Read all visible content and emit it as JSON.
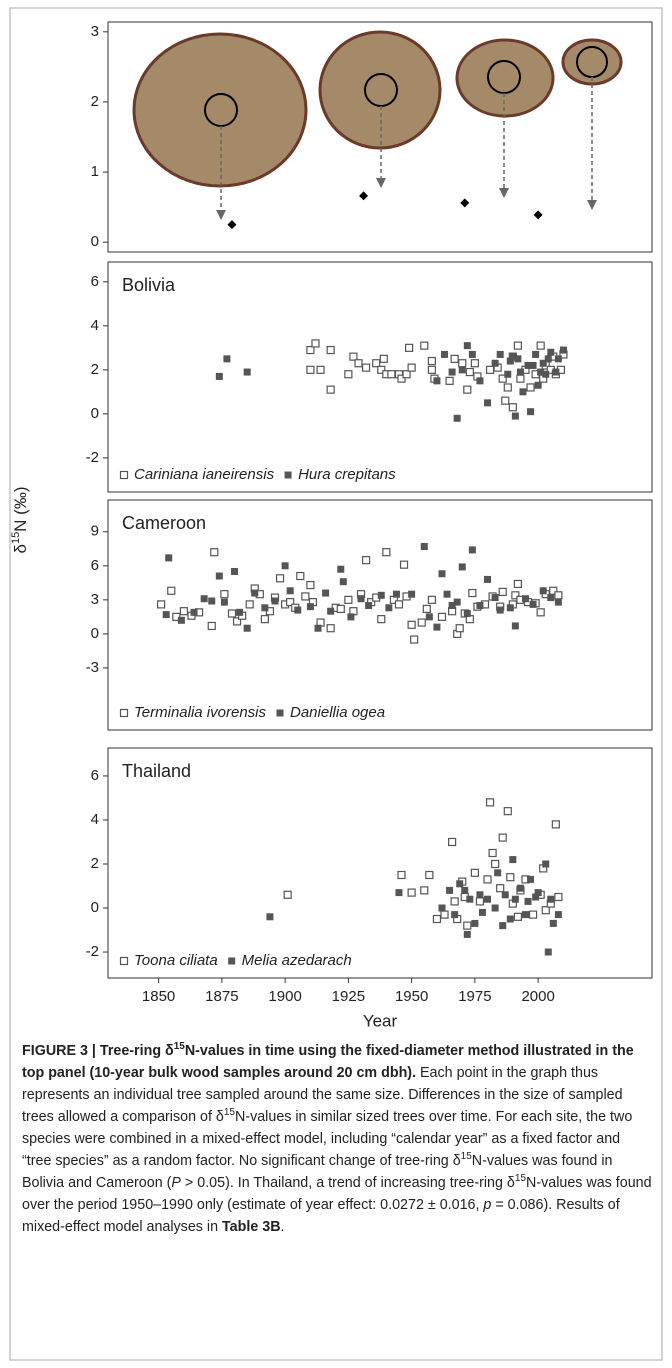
{
  "chart_data": [
    {
      "type": "scatter",
      "marker": "diamond",
      "color": "#000000",
      "x": [
        1879,
        1931,
        1971,
        2000
      ],
      "values": [
        0.25,
        0.66,
        0.56,
        0.39
      ],
      "xlim": [
        1830,
        2045
      ],
      "ylim": [
        -0.14,
        3.14
      ],
      "yticks": [
        0,
        1,
        2,
        3
      ]
    },
    {
      "type": "scatter",
      "title": "Bolivia",
      "xlim": [
        1830,
        2045
      ],
      "ylim": [
        -3.55,
        6.9
      ],
      "yticks": [
        -2,
        0,
        2,
        4,
        6
      ],
      "series": [
        {
          "name": "Cariniana ianeirensis",
          "marker": "open-square",
          "color": "#555555",
          "x": [
            1910,
            1910,
            1912,
            1914,
            1918,
            1918,
            1925,
            1927,
            1929,
            1932,
            1936,
            1938,
            1939,
            1940,
            1942,
            1945,
            1946,
            1948,
            1949,
            1950,
            1955,
            1958,
            1958,
            1959,
            1965,
            1967,
            1970,
            1972,
            1973,
            1975,
            1976,
            1981,
            1984,
            1986,
            1987,
            1988,
            1990,
            1990,
            1992,
            1993,
            1995,
            1997,
            1999,
            2001,
            2002,
            2003,
            2005,
            2006,
            2007,
            2009,
            2010
          ],
          "values": [
            2.0,
            2.9,
            3.2,
            2.0,
            2.9,
            1.1,
            1.8,
            2.6,
            2.3,
            2.1,
            2.3,
            2.0,
            2.5,
            1.8,
            1.8,
            1.8,
            1.6,
            1.8,
            3.0,
            2.1,
            3.1,
            2.4,
            2.0,
            1.6,
            1.5,
            2.5,
            2.3,
            1.1,
            1.9,
            2.3,
            1.7,
            2.0,
            2.1,
            1.6,
            0.6,
            1.2,
            2.6,
            0.3,
            3.1,
            1.6,
            2.0,
            1.2,
            1.8,
            3.1,
            1.6,
            2.2,
            2.0,
            2.6,
            1.8,
            2.0,
            2.7
          ]
        },
        {
          "name": "Hura crepitans",
          "marker": "filled-square",
          "color": "#555555",
          "x": [
            1874,
            1877,
            1885,
            1960,
            1963,
            1968,
            1966,
            1970,
            1972,
            1974,
            1977,
            1980,
            1983,
            1985,
            1988,
            1989,
            1990,
            1991,
            1992,
            1993,
            1994,
            1996,
            1997,
            1998,
            1999,
            2000,
            2001,
            2002,
            2003,
            2004,
            2005,
            2007,
            2008,
            2010
          ],
          "values": [
            1.7,
            2.5,
            1.9,
            1.5,
            2.7,
            -0.2,
            1.9,
            2.0,
            3.1,
            2.7,
            1.5,
            0.5,
            2.3,
            2.7,
            1.8,
            2.4,
            2.6,
            -0.1,
            2.5,
            1.9,
            1.0,
            2.2,
            0.1,
            2.2,
            2.7,
            1.3,
            1.9,
            2.3,
            1.8,
            2.5,
            2.8,
            1.9,
            2.5,
            2.9
          ]
        }
      ]
    },
    {
      "type": "scatter",
      "title": "Cameroon",
      "xlim": [
        1830,
        2045
      ],
      "ylim": [
        -8.47,
        11.8
      ],
      "yticks": [
        -3,
        0,
        3,
        6,
        9
      ],
      "series": [
        {
          "name": "Terminalia ivorensis",
          "marker": "open-square",
          "color": "#555555",
          "x": [
            1851,
            1855,
            1857,
            1860,
            1863,
            1866,
            1871,
            1872,
            1876,
            1879,
            1881,
            1883,
            1886,
            1888,
            1890,
            1892,
            1894,
            1896,
            1898,
            1900,
            1902,
            1904,
            1906,
            1908,
            1910,
            1911,
            1914,
            1918,
            1920,
            1922,
            1925,
            1927,
            1930,
            1932,
            1934,
            1936,
            1938,
            1940,
            1943,
            1945,
            1947,
            1948,
            1950,
            1951,
            1954,
            1956,
            1958,
            1962,
            1966,
            1968,
            1969,
            1971,
            1973,
            1974,
            1976,
            1979,
            1982,
            1985,
            1986,
            1990,
            1991,
            1992,
            1993,
            1996,
            1999,
            2001,
            2003,
            2006,
            2008
          ],
          "values": [
            2.6,
            3.8,
            1.5,
            2.0,
            1.6,
            1.9,
            0.7,
            7.2,
            3.5,
            1.8,
            1.1,
            1.6,
            2.6,
            4.0,
            3.5,
            1.3,
            2.0,
            3.2,
            4.9,
            2.6,
            2.8,
            2.3,
            5.1,
            3.3,
            4.3,
            2.8,
            1.0,
            0.5,
            2.3,
            2.2,
            3.0,
            2.0,
            3.5,
            6.5,
            2.8,
            3.2,
            1.3,
            7.2,
            3.0,
            2.6,
            6.1,
            3.3,
            0.8,
            -0.5,
            1.0,
            2.2,
            3.0,
            1.5,
            2.0,
            0.0,
            0.5,
            1.8,
            1.3,
            3.6,
            2.4,
            2.6,
            3.3,
            2.4,
            3.7,
            2.6,
            3.4,
            4.4,
            3.0,
            2.8,
            2.7,
            1.9,
            3.5,
            3.8,
            3.4
          ]
        },
        {
          "name": "Daniellia ogea",
          "marker": "filled-square",
          "color": "#555555",
          "x": [
            1853,
            1854,
            1859,
            1864,
            1868,
            1871,
            1874,
            1876,
            1880,
            1882,
            1885,
            1888,
            1892,
            1896,
            1900,
            1902,
            1905,
            1910,
            1913,
            1916,
            1918,
            1922,
            1923,
            1926,
            1930,
            1933,
            1938,
            1941,
            1944,
            1950,
            1955,
            1957,
            1960,
            1962,
            1964,
            1966,
            1968,
            1970,
            1972,
            1974,
            1977,
            1980,
            1983,
            1985,
            1989,
            1991,
            1995,
            1998,
            2002,
            2005,
            2008
          ],
          "values": [
            1.7,
            6.7,
            1.2,
            1.9,
            3.1,
            2.9,
            5.1,
            2.8,
            5.5,
            1.9,
            0.5,
            3.6,
            2.3,
            2.9,
            6.0,
            3.8,
            2.1,
            2.4,
            0.5,
            3.6,
            2.0,
            5.7,
            4.6,
            1.5,
            3.1,
            2.5,
            3.4,
            2.3,
            3.5,
            3.5,
            7.7,
            1.5,
            0.6,
            5.3,
            3.5,
            2.5,
            2.8,
            5.9,
            1.8,
            7.4,
            2.5,
            4.8,
            3.2,
            2.1,
            2.3,
            0.7,
            3.1,
            2.6,
            3.8,
            3.2,
            2.8
          ]
        }
      ]
    },
    {
      "type": "scatter",
      "title": "Thailand",
      "xlim": [
        1830,
        2045
      ],
      "ylim": [
        -3.18,
        7.27
      ],
      "yticks": [
        -2,
        0,
        2,
        4,
        6
      ],
      "xticks": [
        1850,
        1875,
        1900,
        1925,
        1950,
        1975,
        2000
      ],
      "series": [
        {
          "name": "Toona ciliata",
          "marker": "open-square",
          "color": "#555555",
          "x": [
            1901,
            1946,
            1950,
            1955,
            1957,
            1960,
            1963,
            1966,
            1967,
            1968,
            1970,
            1971,
            1972,
            1975,
            1977,
            1980,
            1981,
            1982,
            1983,
            1985,
            1986,
            1988,
            1989,
            1990,
            1992,
            1993,
            1995,
            1998,
            2001,
            2002,
            2003,
            2005,
            2007,
            2008
          ],
          "values": [
            0.6,
            1.5,
            0.7,
            0.8,
            1.5,
            -0.5,
            -0.3,
            3.0,
            0.3,
            -0.5,
            1.2,
            0.5,
            -0.8,
            1.6,
            0.3,
            1.3,
            4.8,
            2.5,
            2.0,
            0.9,
            3.2,
            4.4,
            1.4,
            0.2,
            -0.4,
            0.8,
            1.3,
            -0.3,
            0.6,
            1.8,
            -0.1,
            0.2,
            3.8,
            0.5
          ]
        },
        {
          "name": "Melia azedarach",
          "marker": "filled-square",
          "color": "#555555",
          "x": [
            1894,
            1945,
            1962,
            1965,
            1967,
            1969,
            1971,
            1972,
            1973,
            1975,
            1977,
            1978,
            1980,
            1983,
            1984,
            1986,
            1987,
            1989,
            1990,
            1991,
            1993,
            1995,
            1996,
            1997,
            1999,
            2000,
            2003,
            2004,
            2005,
            2006,
            2008
          ],
          "values": [
            -0.4,
            0.7,
            0.0,
            0.8,
            -0.3,
            1.1,
            0.8,
            -1.2,
            0.4,
            -0.7,
            0.6,
            -0.2,
            0.4,
            0.0,
            1.6,
            -0.8,
            0.6,
            -0.5,
            2.2,
            0.4,
            0.9,
            -0.3,
            0.3,
            1.3,
            0.5,
            0.7,
            2.0,
            -2.0,
            0.4,
            -0.7,
            -0.3
          ]
        }
      ]
    }
  ],
  "y_label": {
    "prefix": "δ",
    "sup": "15",
    "rest": "N (‰)"
  },
  "x_label": "Year",
  "caption": {
    "bold": [
      "FIGURE 3 | Tree-ring δ",
      "15",
      "N-values in time using the fixed-diameter method illustrated in the top panel (10-year bulk wood samples around 20 cm dbh)."
    ],
    "body": [
      " Each point in the graph thus represents an individual tree sampled around the same size. Differences in the size of sampled trees allowed a comparison of δ",
      "15",
      "N-values in similar sized trees over time. For each site, the two species were combined in a mixed-effect model, including “calendar year” as a fixed factor and “tree species” as a random factor. No significant change of tree-ring δ",
      "15",
      "N-values was found in Bolivia and Cameroon (",
      "P",
      " > 0.05). In Thailand, a trend of increasing tree-ring δ",
      "15",
      "N-values was found over the period 1950–1990 only (estimate of year effect: 0.0272 ± 0.016, ",
      "p",
      " = 0.086). Results of mixed-effect model analyses in ",
      "Table 3B",
      "."
    ]
  }
}
